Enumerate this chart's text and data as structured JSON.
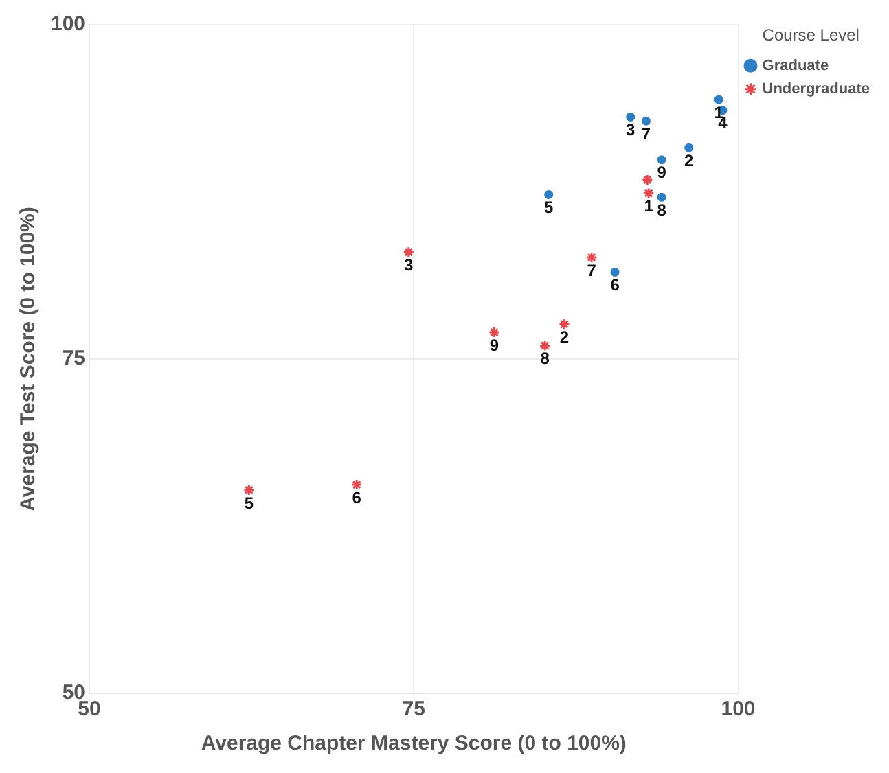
{
  "chart_data": {
    "type": "scatter",
    "xlabel": "Average Chapter Mastery Score (0 to 100%)",
    "ylabel": "Average Test Score (0 to 100%)",
    "legend_title": "Course Level",
    "legend": "top right",
    "grid": true,
    "xlim": [
      50,
      100
    ],
    "xticks": [
      50,
      75,
      100
    ],
    "ylim": [
      50,
      100
    ],
    "yticks": [
      50,
      75,
      100
    ],
    "series": [
      {
        "name": "Graduate",
        "color": "#2e7fc6",
        "marker": "circle",
        "x": [
          98.5,
          96.2,
          91.7,
          98.8,
          85.4,
          90.5,
          92.9,
          94.1,
          94.1
        ],
        "values": [
          94.4,
          90.8,
          93.1,
          93.6,
          87.3,
          81.5,
          92.8,
          87.1,
          89.9
        ]
      },
      {
        "name": "Undergraduate",
        "color": "#e5484d",
        "marker": "cross",
        "x": [
          93.1,
          86.6,
          74.6,
          62.3,
          70.6,
          88.7,
          85.1,
          81.2,
          93.0
        ],
        "values": [
          87.4,
          77.6,
          83.0,
          65.2,
          65.6,
          82.6,
          76.0,
          77.0,
          88.4
        ]
      }
    ],
    "annotations": [
      {
        "text": "1",
        "x": 98.5,
        "y": 94.4
      },
      {
        "text": "2",
        "x": 96.2,
        "y": 90.8
      },
      {
        "text": "3",
        "x": 91.7,
        "y": 93.1
      },
      {
        "text": "4",
        "x": 98.8,
        "y": 93.6
      },
      {
        "text": "5",
        "x": 85.4,
        "y": 87.3
      },
      {
        "text": "6",
        "x": 90.5,
        "y": 81.5
      },
      {
        "text": "7",
        "x": 92.9,
        "y": 92.8
      },
      {
        "text": "8",
        "x": 94.1,
        "y": 87.1
      },
      {
        "text": "9",
        "x": 94.1,
        "y": 89.9
      },
      {
        "text": "1",
        "x": 93.1,
        "y": 87.4
      },
      {
        "text": "2",
        "x": 86.6,
        "y": 77.6
      },
      {
        "text": "3",
        "x": 74.6,
        "y": 83.0
      },
      {
        "text": "5",
        "x": 62.3,
        "y": 65.2
      },
      {
        "text": "6",
        "x": 70.6,
        "y": 65.6
      },
      {
        "text": "7",
        "x": 88.7,
        "y": 82.6
      },
      {
        "text": "8",
        "x": 85.1,
        "y": 76.0
      },
      {
        "text": "9",
        "x": 81.2,
        "y": 77.0
      }
    ]
  }
}
